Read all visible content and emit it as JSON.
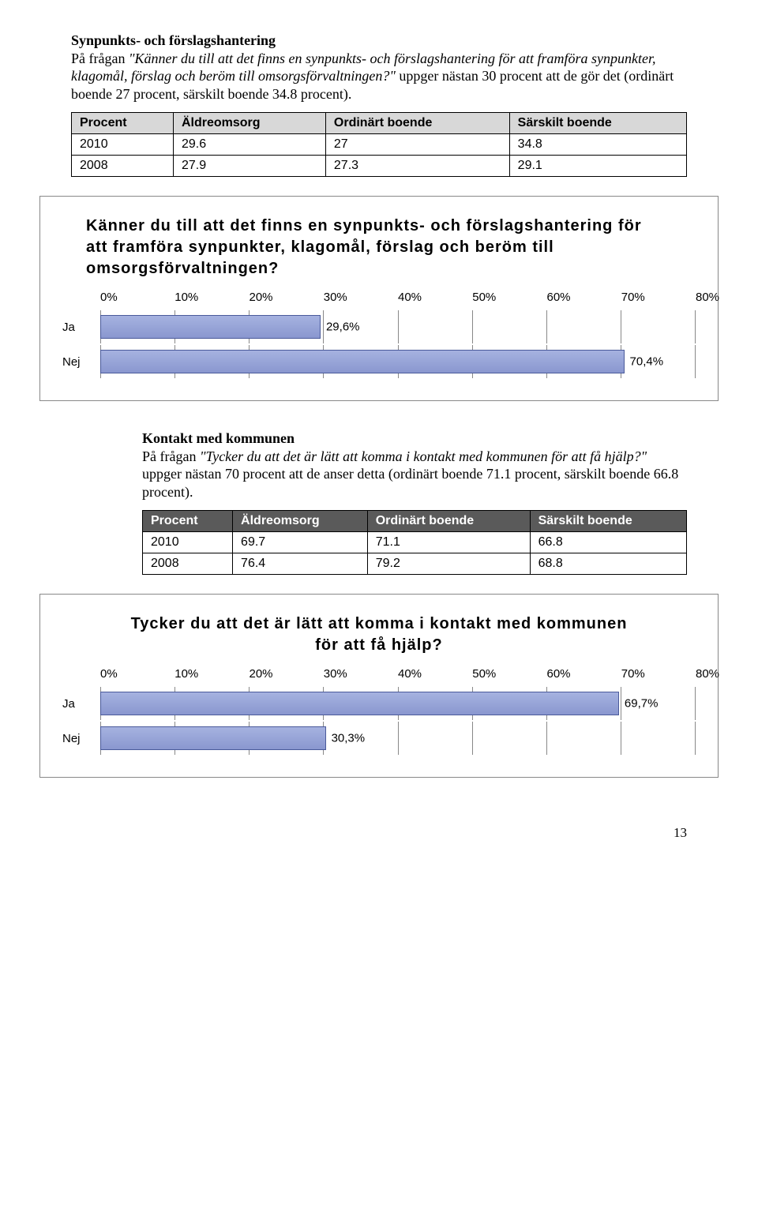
{
  "section1": {
    "title": "Synpunkts- och förslagshantering",
    "p_lead": "På frågan ",
    "p_italic": "\"Känner du till att det finns en synpunkts- och förslagshantering för att framföra synpunkter, klagomål, förslag och beröm till omsorgsförvaltningen?\"",
    "p_tail": " uppger nästan 30 procent att de gör det (ordinärt boende 27 procent, särskilt boende 34.8 procent)."
  },
  "table1": {
    "headers": [
      "Procent",
      "Äldreomsorg",
      "Ordinärt boende",
      "Särskilt boende"
    ],
    "rows": [
      [
        "2010",
        "29.6",
        "27",
        "34.8"
      ],
      [
        "2008",
        "27.9",
        "27.3",
        "29.1"
      ]
    ],
    "header_bg": "#d8d8d8",
    "row_bg": "#ffffff",
    "border_color": "#000000",
    "font_family": "Arial",
    "font_size": 16
  },
  "chart1": {
    "type": "bar-horizontal",
    "title": "Känner du till att det finns en synpunkts- och förslagshantering för att framföra synpunkter, klagomål, förslag och beröm till omsorgsförvaltningen?",
    "title_fontsize": 20,
    "xlim": [
      0,
      80
    ],
    "xtick_step": 10,
    "xticks": [
      "0%",
      "10%",
      "20%",
      "30%",
      "40%",
      "50%",
      "60%",
      "70%",
      "80%"
    ],
    "categories": [
      "Ja",
      "Nej"
    ],
    "values": [
      29.6,
      70.4
    ],
    "value_labels": [
      "29,6%",
      "70,4%"
    ],
    "bar_color": "#a6b2e0",
    "bar_border": "#4a5a9a",
    "grid_color": "#888888",
    "background": "#ffffff",
    "label_fontsize": 15
  },
  "section2": {
    "title": "Kontakt med kommunen",
    "p_lead": "På frågan ",
    "p_italic": "\"Tycker du att det är lätt att komma i kontakt med kommunen för att få hjälp?\"",
    "p_tail": " uppger nästan 70 procent att de anser detta (ordinärt boende 71.1 procent, särskilt boende 66.8 procent)."
  },
  "table2": {
    "headers": [
      "Procent",
      "Äldreomsorg",
      "Ordinärt boende",
      "Särskilt boende"
    ],
    "rows": [
      [
        "2010",
        "69.7",
        "71.1",
        "66.8"
      ],
      [
        "2008",
        "76.4",
        "79.2",
        "68.8"
      ]
    ],
    "header_bg": "#5a5a5a",
    "header_color": "#ffffff",
    "row_bg": "#ffffff",
    "border_color": "#000000",
    "font_family": "Arial",
    "font_size": 16
  },
  "chart2": {
    "type": "bar-horizontal",
    "title": "Tycker du att det är lätt att komma i kontakt med kommunen för att få hjälp?",
    "title_fontsize": 20,
    "xlim": [
      0,
      80
    ],
    "xtick_step": 10,
    "xticks": [
      "0%",
      "10%",
      "20%",
      "30%",
      "40%",
      "50%",
      "60%",
      "70%",
      "80%"
    ],
    "categories": [
      "Ja",
      "Nej"
    ],
    "values": [
      69.7,
      30.3
    ],
    "value_labels": [
      "69,7%",
      "30,3%"
    ],
    "bar_color": "#a6b2e0",
    "bar_border": "#4a5a9a",
    "grid_color": "#888888",
    "background": "#ffffff",
    "label_fontsize": 15
  },
  "page_number": "13"
}
